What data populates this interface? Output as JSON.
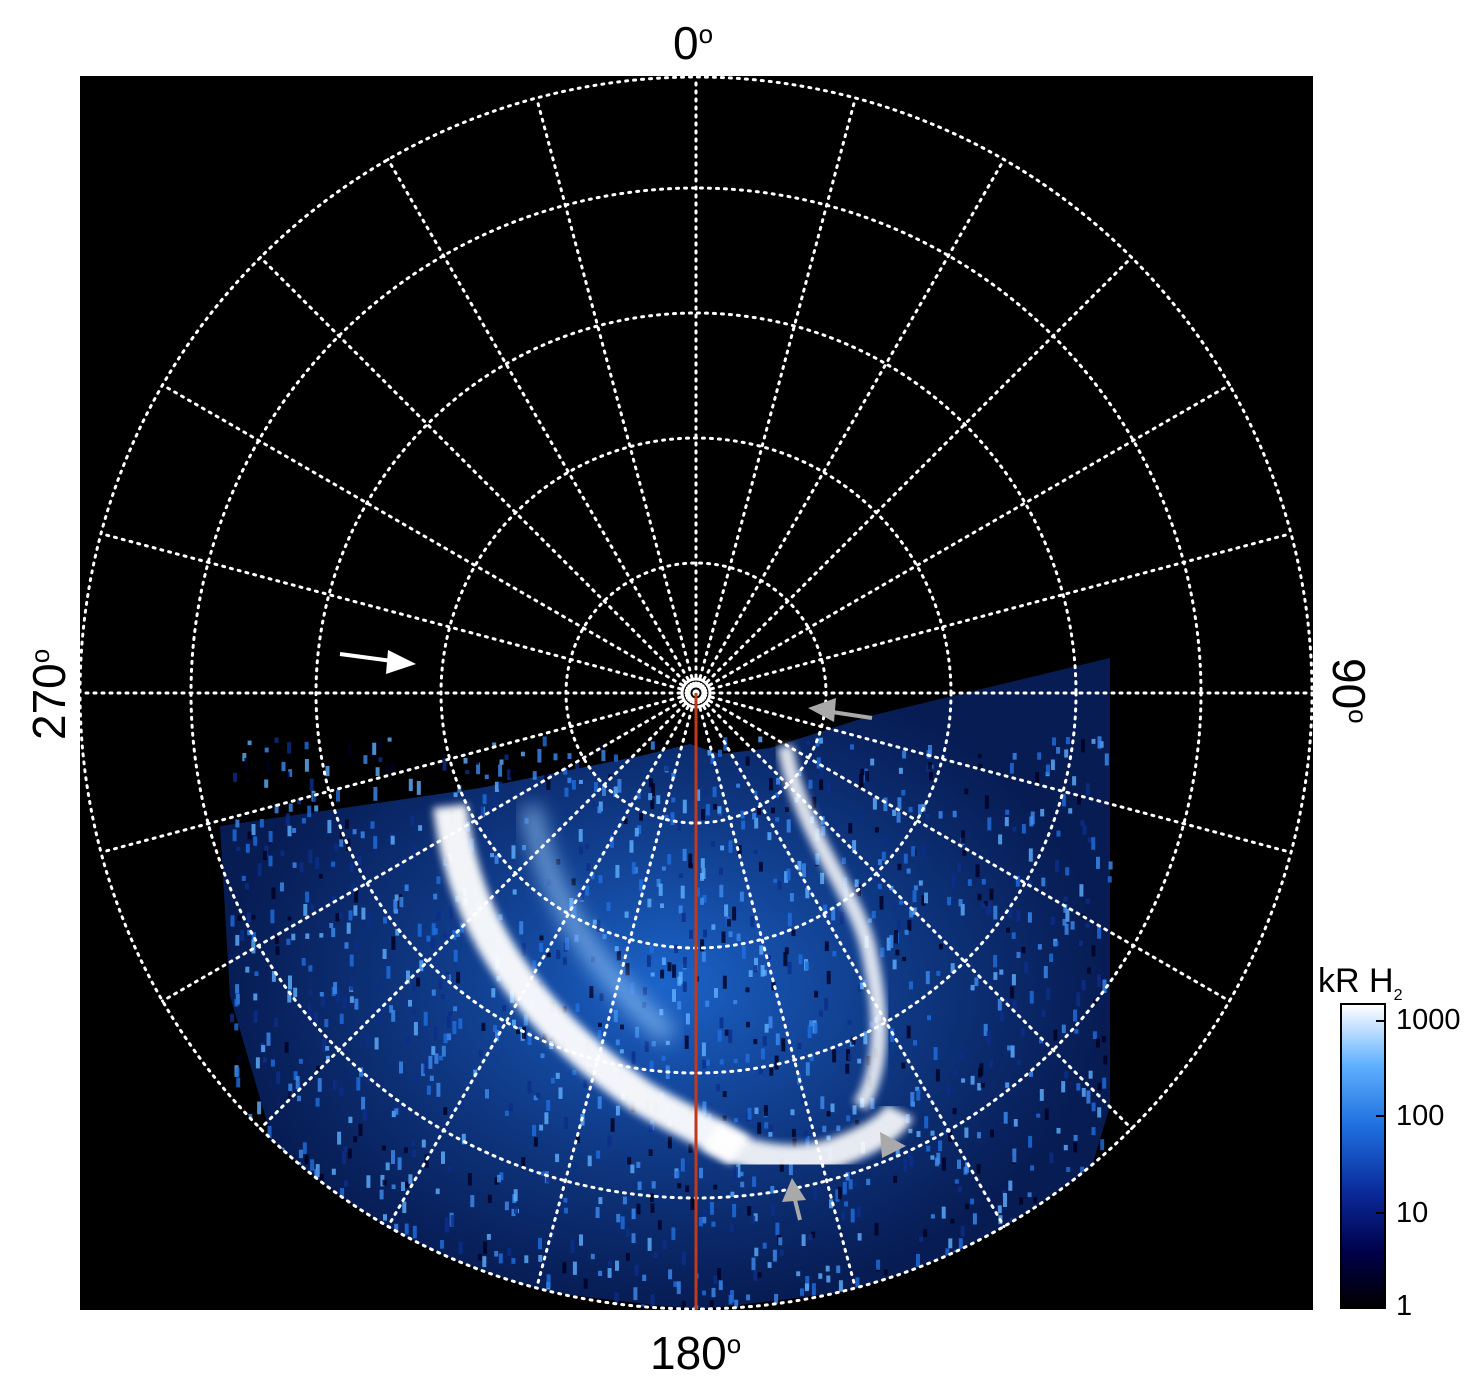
{
  "axis_labels": {
    "top": "0",
    "right": "90",
    "bottom": "180",
    "left": "270",
    "degree_symbol": "o"
  },
  "colorbar": {
    "title": "kR H",
    "title_subscript": "2",
    "ticks": [
      "1000",
      "100",
      "10",
      "1"
    ],
    "colors": [
      "#000000",
      "#00004a",
      "#0a2a9a",
      "#1f6fe0",
      "#5fb0ff",
      "#ffffff"
    ]
  },
  "colors": {
    "grid": "#ffffff",
    "meridian_line": "#c0391b",
    "aurora_bright": "#ffffff",
    "aurora_mid": "#3d8cf0",
    "aurora_dim": "#0b2e8a",
    "arrow_white": "#ffffff",
    "arrow_grey": "#a9a9a9"
  }
}
